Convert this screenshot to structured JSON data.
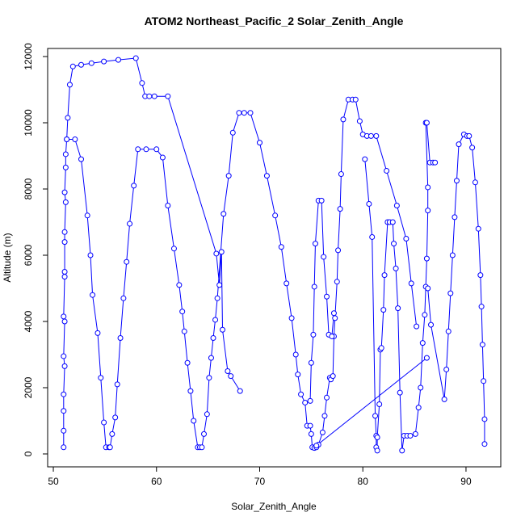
{
  "chart_data": {
    "type": "line",
    "title": "ATOM2 Northeast_Pacific_2 Solar_Zenith_Angle",
    "x_label": "Solar_Zenith_Angle",
    "y_label": "Altitude (m)",
    "xlim": [
      49.45,
      93.37
    ],
    "ylim": [
      -390,
      12244
    ],
    "xticks": [
      50,
      60,
      70,
      80,
      90
    ],
    "yticks": [
      0,
      2000,
      4000,
      6000,
      8000,
      10000,
      12000
    ],
    "series": [
      {
        "color": "#0000ff",
        "x": [
          51,
          51,
          51,
          51,
          51.1,
          51,
          51.1,
          51,
          51.1,
          51.1,
          51.1,
          51.1,
          51.2,
          51.1,
          51.2,
          51.2,
          51.3,
          51.4,
          51.6,
          51.9,
          52.7,
          53.7,
          54.9,
          56.3,
          58,
          58.6,
          58.9,
          59.3,
          59.8,
          61.1,
          65.8,
          66.1,
          66.3,
          66.4,
          66.9,
          67.2,
          68.1,
          null,
          51.3,
          52.1,
          52.7,
          53.3,
          53.6,
          53.8,
          54.3,
          54.6,
          54.9,
          55.1,
          55.4,
          55.5,
          55.7,
          56,
          56.2,
          56.5,
          56.8,
          57.1,
          57.4,
          57.8,
          58.2,
          59,
          60,
          60.6,
          61.1,
          61.7,
          62.2,
          62.5,
          62.7,
          63,
          63.3,
          63.6,
          64,
          64.2,
          64.4,
          64.6,
          64.9,
          65.1,
          65.3,
          65.5,
          65.7,
          65.9,
          66.5,
          67,
          67.4,
          68,
          68.5,
          69.1,
          70,
          70.7,
          71.5,
          72.1,
          72.6,
          73.1,
          73.5,
          73.7,
          74,
          74.4,
          74.6,
          74.9,
          75,
          75.1,
          75.3,
          75.5,
          75.7,
          76.1,
          76.3,
          76.5,
          76.8,
          76.9,
          77.1,
          77.2,
          77.3,
          77.5,
          77.6,
          77.8,
          77.9,
          78.1,
          78.6,
          79,
          79.3,
          79.7,
          80,
          80.4,
          80.8,
          81.3,
          82.3,
          83.3,
          84.2,
          84.7,
          85.2,
          null,
          74.9,
          75,
          75.2,
          75.3,
          75.4,
          75.7,
          76,
          76.2,
          76.5,
          76.7,
          77,
          77.2,
          null,
          75.5,
          86.2,
          null,
          80.2,
          80.6,
          80.9,
          81.2,
          81.3,
          81.3,
          81.4,
          81.4,
          81.6,
          81.7,
          81.8,
          82,
          82.1,
          82.4,
          82.6,
          82.9,
          83,
          83.2,
          83.4,
          83.6,
          83.8,
          84,
          84.3,
          84.6,
          85.1,
          85.4,
          85.6,
          85.8,
          86,
          86.1,
          86.2,
          86.3,
          86.3,
          86.1,
          86.2,
          86.5,
          86.8,
          87,
          null,
          86.3,
          86.6,
          87.9,
          88.1,
          88.3,
          88.5,
          88.7,
          88.9,
          89.1,
          89.3,
          89.8,
          90.1,
          90.3,
          90.6,
          90.9,
          91.2,
          91.4,
          91.5,
          91.6,
          91.7,
          91.8,
          91.8
        ],
        "values": [
          200,
          700,
          1300,
          1800,
          2650,
          2950,
          4000,
          4150,
          5350,
          5500,
          6400,
          6700,
          7600,
          7900,
          8650,
          9050,
          9500,
          10150,
          11150,
          11700,
          11750,
          11800,
          11850,
          11900,
          11950,
          11200,
          10800,
          10800,
          10800,
          10800,
          6050,
          5100,
          6100,
          3750,
          2500,
          2350,
          1900,
          null,
          9500,
          9500,
          8900,
          7200,
          6000,
          4800,
          3650,
          2300,
          950,
          200,
          200,
          200,
          600,
          1100,
          2100,
          3500,
          4700,
          5800,
          6950,
          8100,
          9200,
          9200,
          9200,
          8950,
          7500,
          6200,
          5100,
          4300,
          3700,
          2750,
          1900,
          1000,
          200,
          200,
          200,
          600,
          1200,
          2300,
          2900,
          3500,
          4050,
          4700,
          7250,
          8400,
          9700,
          10300,
          10300,
          10300,
          9400,
          8400,
          7200,
          6250,
          5150,
          4100,
          3000,
          2400,
          1800,
          1550,
          850,
          850,
          600,
          200,
          180,
          200,
          280,
          650,
          1150,
          1700,
          2300,
          2250,
          2350,
          3550,
          4100,
          5200,
          6150,
          7400,
          8450,
          10100,
          10700,
          10700,
          10700,
          10050,
          9650,
          9600,
          9600,
          9600,
          8550,
          7500,
          6500,
          5150,
          3850,
          null,
          1600,
          2750,
          3600,
          5050,
          6350,
          7650,
          7650,
          5950,
          4750,
          3600,
          3550,
          4250,
          null,
          250,
          2900,
          null,
          8900,
          7550,
          6550,
          1150,
          550,
          200,
          100,
          500,
          1500,
          3150,
          3200,
          4350,
          5400,
          7000,
          7000,
          7000,
          6350,
          5600,
          4400,
          1850,
          100,
          550,
          550,
          550,
          600,
          1400,
          2000,
          3350,
          4200,
          5050,
          5900,
          7350,
          8050,
          10000,
          10000,
          8800,
          8800,
          8800,
          null,
          5000,
          3900,
          1650,
          2550,
          3700,
          4850,
          6000,
          7150,
          8250,
          9350,
          9650,
          9600,
          9600,
          9250,
          8200,
          6800,
          5400,
          4450,
          3300,
          2200,
          1050,
          300
        ]
      }
    ]
  }
}
